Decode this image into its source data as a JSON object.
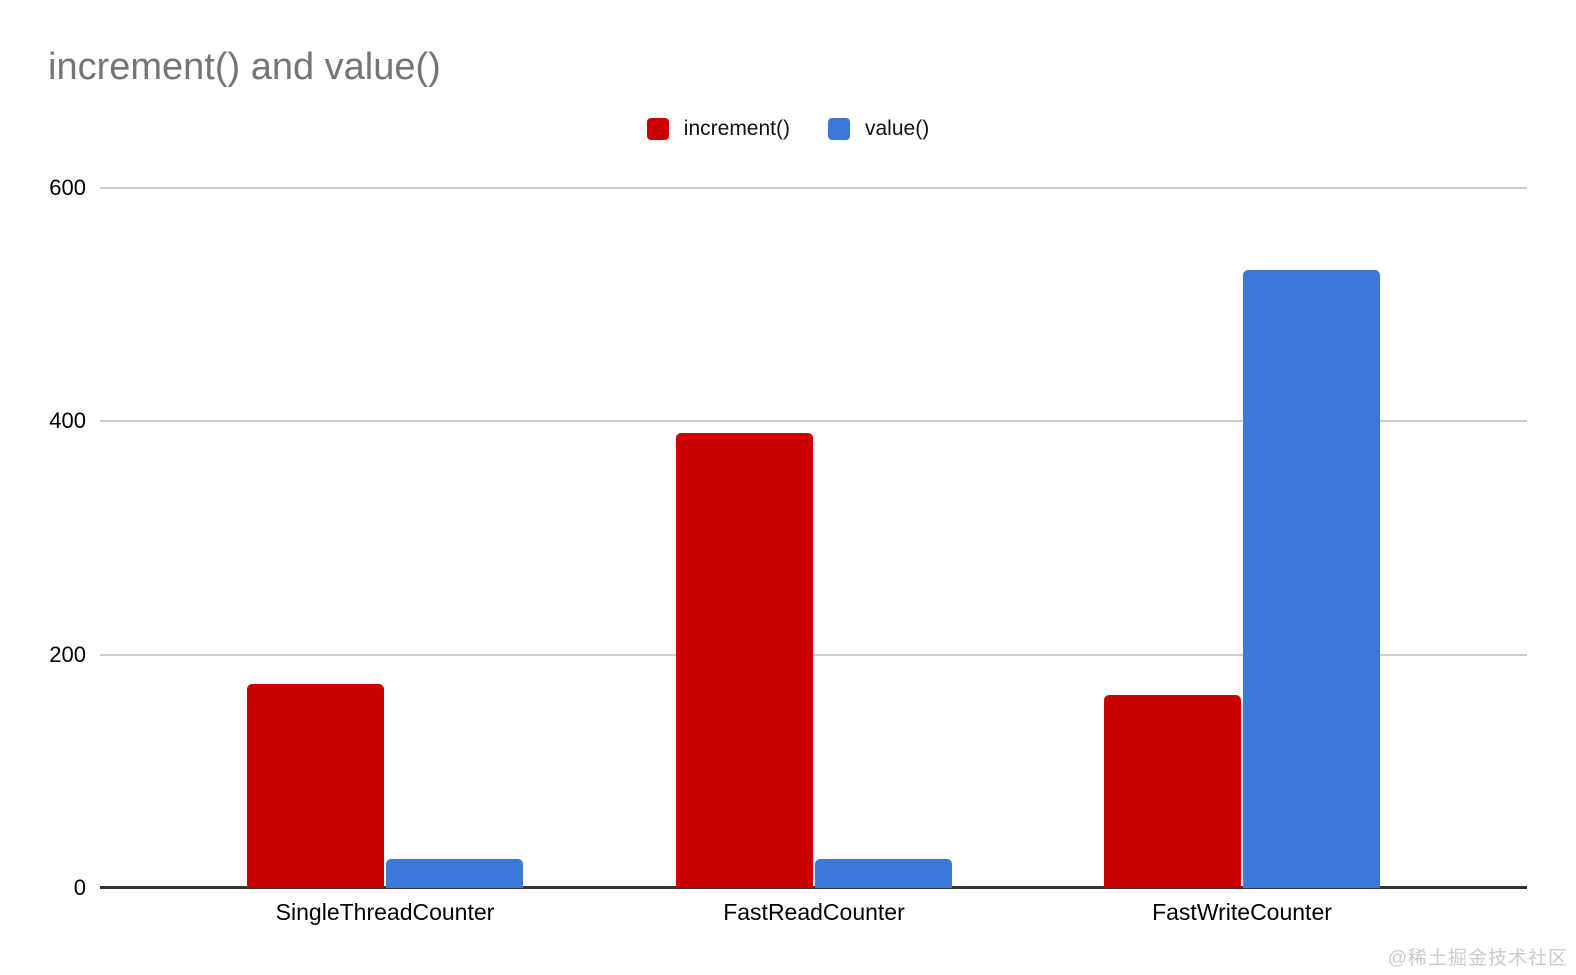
{
  "page": {
    "watermark": "@稀土掘金技术社区"
  },
  "chart_data": {
    "type": "bar",
    "title": "increment() and value()",
    "categories": [
      "SingleThreadCounter",
      "FastReadCounter",
      "FastWriteCounter"
    ],
    "series": [
      {
        "name": "increment()",
        "color": "#cc0000",
        "values": [
          175,
          390,
          165
        ]
      },
      {
        "name": "value()",
        "color": "#3c78d8",
        "values": [
          25,
          25,
          530
        ]
      }
    ],
    "xlabel": "",
    "ylabel": "",
    "ylim": [
      0,
      600
    ],
    "yticks": [
      0,
      200,
      400,
      600
    ],
    "grid": true,
    "legend_position": "top-center"
  },
  "colors": {
    "background": "#ffffff",
    "title_text": "#757575",
    "axis_text": "#000000",
    "gridline": "#cccccc",
    "axis_line": "#333333",
    "bar_red": "#cc0000",
    "bar_blue": "#3c78d8",
    "watermark_text": "#cbcbcb"
  }
}
